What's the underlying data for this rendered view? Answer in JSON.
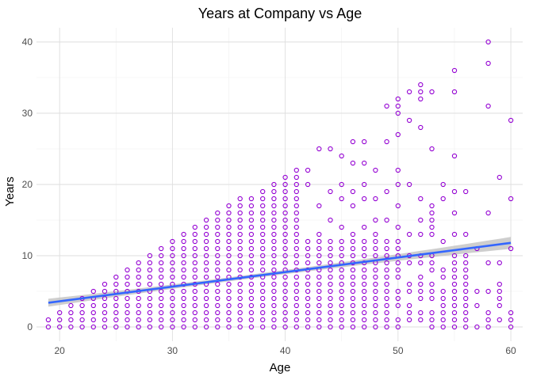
{
  "chart_data": {
    "type": "scatter",
    "title": "Years at Company vs Age",
    "xlabel": "Age",
    "ylabel": "Years",
    "xlim": [
      17.95,
      61.05
    ],
    "ylim": [
      -2,
      42
    ],
    "x_ticks": [
      20,
      30,
      40,
      50,
      60
    ],
    "y_ticks": [
      0,
      10,
      20,
      30,
      40
    ],
    "grid": true,
    "point_color": "#9400D3",
    "trend_color": "#3366FF",
    "ribbon_color": "#bdbdbd",
    "trend_line": {
      "x": [
        19,
        60
      ],
      "y": [
        3.4,
        11.8
      ]
    },
    "points_envelope": [
      [
        19,
        1
      ],
      [
        20,
        2
      ],
      [
        21,
        3
      ],
      [
        22,
        4
      ],
      [
        23,
        5
      ],
      [
        24,
        6
      ],
      [
        25,
        7
      ],
      [
        26,
        8
      ],
      [
        27,
        9
      ],
      [
        28,
        10
      ],
      [
        29,
        11
      ],
      [
        30,
        12
      ],
      [
        31,
        13
      ],
      [
        32,
        14
      ],
      [
        33,
        15
      ],
      [
        34,
        16
      ],
      [
        35,
        17
      ],
      [
        36,
        18
      ],
      [
        37,
        18
      ],
      [
        38,
        19
      ],
      [
        39,
        20
      ],
      [
        40,
        21
      ],
      [
        41,
        22
      ],
      [
        42,
        22
      ],
      [
        43,
        25
      ],
      [
        44,
        25
      ],
      [
        45,
        24
      ],
      [
        46,
        26
      ],
      [
        47,
        26
      ],
      [
        48,
        22
      ],
      [
        49,
        31
      ],
      [
        50,
        32
      ],
      [
        51,
        33
      ],
      [
        52,
        34
      ],
      [
        53,
        33
      ],
      [
        54,
        20
      ],
      [
        55,
        36
      ],
      [
        56,
        19
      ],
      [
        57,
        11
      ],
      [
        58,
        40
      ],
      [
        59,
        21
      ],
      [
        60,
        29
      ]
    ],
    "points_extra": [
      [
        38,
        15
      ],
      [
        39,
        13
      ],
      [
        40,
        18
      ],
      [
        41,
        19
      ],
      [
        41,
        14
      ],
      [
        42,
        12
      ],
      [
        42,
        20
      ],
      [
        43,
        17
      ],
      [
        43,
        13
      ],
      [
        44,
        19
      ],
      [
        44,
        15
      ],
      [
        45,
        20
      ],
      [
        45,
        18
      ],
      [
        45,
        14
      ],
      [
        46,
        23
      ],
      [
        46,
        19
      ],
      [
        46,
        17
      ],
      [
        46,
        13
      ],
      [
        47,
        23
      ],
      [
        47,
        20
      ],
      [
        47,
        18
      ],
      [
        47,
        14
      ],
      [
        48,
        18
      ],
      [
        48,
        15
      ],
      [
        48,
        13
      ],
      [
        49,
        26
      ],
      [
        49,
        19
      ],
      [
        49,
        15
      ],
      [
        50,
        27
      ],
      [
        50,
        31
      ],
      [
        50,
        30
      ],
      [
        50,
        22
      ],
      [
        50,
        20
      ],
      [
        50,
        17
      ],
      [
        50,
        14
      ],
      [
        51,
        33
      ],
      [
        51,
        29
      ],
      [
        51,
        20
      ],
      [
        51,
        13
      ],
      [
        52,
        33
      ],
      [
        52,
        32
      ],
      [
        52,
        28
      ],
      [
        52,
        18
      ],
      [
        52,
        15
      ],
      [
        52,
        13
      ],
      [
        53,
        25
      ],
      [
        53,
        17
      ],
      [
        53,
        16
      ],
      [
        53,
        15
      ],
      [
        53,
        14
      ],
      [
        53,
        13
      ],
      [
        54,
        18
      ],
      [
        54,
        12
      ],
      [
        55,
        33
      ],
      [
        55,
        24
      ],
      [
        55,
        19
      ],
      [
        55,
        16
      ],
      [
        55,
        13
      ],
      [
        56,
        13
      ],
      [
        56,
        9
      ],
      [
        56,
        5
      ],
      [
        56,
        3
      ],
      [
        57,
        5
      ],
      [
        57,
        3
      ],
      [
        58,
        37
      ],
      [
        58,
        31
      ],
      [
        58,
        16
      ],
      [
        58,
        9
      ],
      [
        58,
        5
      ],
      [
        58,
        2
      ],
      [
        58,
        1
      ],
      [
        59,
        9
      ],
      [
        59,
        6
      ],
      [
        59,
        5
      ],
      [
        59,
        4
      ],
      [
        59,
        3
      ],
      [
        59,
        1
      ],
      [
        60,
        18
      ],
      [
        60,
        11
      ],
      [
        60,
        2
      ],
      [
        60,
        1
      ]
    ]
  }
}
